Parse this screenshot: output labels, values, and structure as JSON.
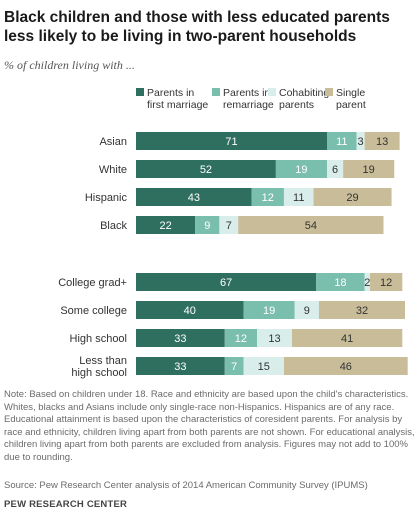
{
  "title": "Black children and those with less educated parents less likely to be living in two-parent  households",
  "subtitle": "% of children living with ...",
  "note": "Note: Based on children under 18. Race and ethnicity are based upon the child's characteristics. Whites, blacks and Asians include only single-race non-Hispanics. Hispanics are of any race. Educational attainment is based upon the characteristics of coresident parents. For analysis by race and ethnicity, children living apart from both parents are not shown. For educational analysis, children living apart from both parents are excluded from analysis. Figures may not add to 100% due to rounding.",
  "source": "Source: Pew Research Center analysis of 2014 American Community Survey (IPUMS)",
  "brand": "PEW RESEARCH CENTER",
  "chart_data": {
    "type": "bar",
    "orientation": "horizontal",
    "stacked": true,
    "legend_position": "top",
    "categories": [
      "Asian",
      "White",
      "Hispanic",
      "Black",
      "College grad+",
      "Some college",
      "High school",
      "Less than high school"
    ],
    "category_lines": [
      [
        "Asian"
      ],
      [
        "White"
      ],
      [
        "Hispanic"
      ],
      [
        "Black"
      ],
      [
        "College grad+"
      ],
      [
        "Some college"
      ],
      [
        "High school"
      ],
      [
        "Less than",
        "high school"
      ]
    ],
    "groups": [
      [
        0,
        1,
        2,
        3
      ],
      [
        4,
        5,
        6,
        7
      ]
    ],
    "xlim": [
      0,
      100
    ],
    "series": [
      {
        "name": "Parents in first marriage",
        "legend_lines": [
          "Parents in",
          "first marriage"
        ],
        "color": "#2f6f5f",
        "label_color": "#ffffff",
        "values": [
          71,
          52,
          43,
          22,
          67,
          40,
          33,
          33
        ]
      },
      {
        "name": "Parents in remarriage",
        "legend_lines": [
          "Parents in",
          "remarriage"
        ],
        "color": "#7abfad",
        "label_color": "#ffffff",
        "values": [
          11,
          19,
          12,
          9,
          18,
          19,
          12,
          7
        ]
      },
      {
        "name": "Cohabiting parents",
        "legend_lines": [
          "Cohabiting",
          "parents"
        ],
        "color": "#d9eeea",
        "label_color": "#333333",
        "values": [
          3,
          6,
          11,
          7,
          2,
          9,
          13,
          15
        ]
      },
      {
        "name": "Single parent",
        "legend_lines": [
          "Single",
          "parent"
        ],
        "color": "#c8bd98",
        "label_color": "#333333",
        "values": [
          13,
          19,
          29,
          54,
          12,
          32,
          41,
          46
        ]
      }
    ]
  }
}
